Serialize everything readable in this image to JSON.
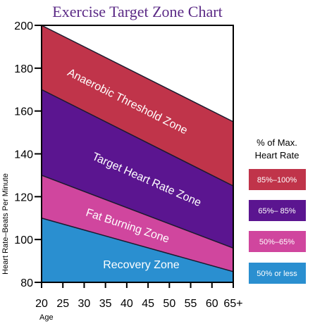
{
  "chart_data": {
    "type": "area",
    "title": "Exercise Target Zone Chart",
    "xlabel": "Age",
    "ylabel": "Heart Rate–Beats Per Minute",
    "x_ticks": [
      "20",
      "25",
      "30",
      "35",
      "40",
      "45",
      "50",
      "55",
      "60",
      "65+"
    ],
    "x": [
      20,
      65
    ],
    "xlim": [
      20,
      65
    ],
    "y_ticks": [
      80,
      100,
      120,
      140,
      160,
      180,
      200
    ],
    "ylim": [
      80,
      200
    ],
    "boundaries": [
      {
        "name": "100%",
        "values": [
          200,
          155
        ]
      },
      {
        "name": "85%",
        "values": [
          170,
          125
        ]
      },
      {
        "name": "65%",
        "values": [
          130,
          96
        ]
      },
      {
        "name": "50%",
        "values": [
          110,
          85
        ]
      }
    ],
    "zones": [
      {
        "label": "Anaerobic Threshold Zone",
        "legend": "85%–100%",
        "color": "#c0344a",
        "upper": "100%",
        "lower": "85%"
      },
      {
        "label": "Target Heart Rate Zone",
        "legend": "65%– 85%",
        "color": "#5b1590",
        "upper": "85%",
        "lower": "65%"
      },
      {
        "label": "Fat Burning Zone",
        "legend": "50%–65%",
        "color": "#d0469e",
        "upper": "65%",
        "lower": "50%"
      },
      {
        "label": "Recovery Zone",
        "legend": "50% or less",
        "color": "#2a8fd0",
        "upper": "50%",
        "lower": "floor"
      }
    ],
    "legend_title": [
      "% of Max.",
      "Heart Rate"
    ],
    "legend_position": "right",
    "grid": false
  }
}
